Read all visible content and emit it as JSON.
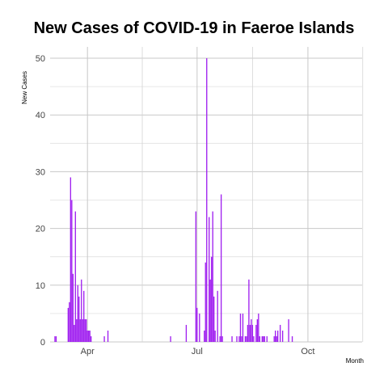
{
  "chart_data": {
    "type": "bar",
    "title": "New Cases of COVID-19 in Faeroe Islands",
    "xlabel": "Month",
    "ylabel": "New Cases",
    "ylim": [
      0,
      52
    ],
    "xlim": [
      "2020-03-01",
      "2020-11-15"
    ],
    "yticks": [
      0,
      10,
      20,
      30,
      40,
      50
    ],
    "xticks": [
      {
        "date": "2020-04-01",
        "label": "Apr"
      },
      {
        "date": "2020-07-01",
        "label": "Jul"
      },
      {
        "date": "2020-10-01",
        "label": "Oct"
      }
    ],
    "color": "#a020f0",
    "points": [
      [
        "2020-03-05",
        1
      ],
      [
        "2020-03-06",
        1
      ],
      [
        "2020-03-16",
        6
      ],
      [
        "2020-03-17",
        7
      ],
      [
        "2020-03-18",
        29
      ],
      [
        "2020-03-19",
        25
      ],
      [
        "2020-03-20",
        12
      ],
      [
        "2020-03-21",
        3
      ],
      [
        "2020-03-22",
        23
      ],
      [
        "2020-03-23",
        4
      ],
      [
        "2020-03-24",
        10
      ],
      [
        "2020-03-25",
        8
      ],
      [
        "2020-03-26",
        4
      ],
      [
        "2020-03-27",
        11
      ],
      [
        "2020-03-28",
        4
      ],
      [
        "2020-03-29",
        9
      ],
      [
        "2020-03-30",
        4
      ],
      [
        "2020-03-31",
        4
      ],
      [
        "2020-04-01",
        2
      ],
      [
        "2020-04-02",
        2
      ],
      [
        "2020-04-03",
        2
      ],
      [
        "2020-04-04",
        1
      ],
      [
        "2020-04-15",
        1
      ],
      [
        "2020-04-18",
        2
      ],
      [
        "2020-06-09",
        1
      ],
      [
        "2020-06-22",
        3
      ],
      [
        "2020-06-30",
        23
      ],
      [
        "2020-07-01",
        6
      ],
      [
        "2020-07-03",
        5
      ],
      [
        "2020-07-07",
        2
      ],
      [
        "2020-07-08",
        14
      ],
      [
        "2020-07-09",
        50
      ],
      [
        "2020-07-11",
        22
      ],
      [
        "2020-07-12",
        11
      ],
      [
        "2020-07-13",
        15
      ],
      [
        "2020-07-14",
        23
      ],
      [
        "2020-07-15",
        8
      ],
      [
        "2020-07-16",
        2
      ],
      [
        "2020-07-18",
        9
      ],
      [
        "2020-07-20",
        1
      ],
      [
        "2020-07-21",
        26
      ],
      [
        "2020-07-22",
        1
      ],
      [
        "2020-07-30",
        1
      ],
      [
        "2020-08-03",
        1
      ],
      [
        "2020-08-05",
        1
      ],
      [
        "2020-08-06",
        5
      ],
      [
        "2020-08-07",
        1
      ],
      [
        "2020-08-08",
        5
      ],
      [
        "2020-08-10",
        1
      ],
      [
        "2020-08-11",
        1
      ],
      [
        "2020-08-12",
        3
      ],
      [
        "2020-08-13",
        11
      ],
      [
        "2020-08-14",
        3
      ],
      [
        "2020-08-15",
        4
      ],
      [
        "2020-08-16",
        3
      ],
      [
        "2020-08-17",
        1
      ],
      [
        "2020-08-19",
        3
      ],
      [
        "2020-08-20",
        4
      ],
      [
        "2020-08-21",
        5
      ],
      [
        "2020-08-22",
        1
      ],
      [
        "2020-08-24",
        1
      ],
      [
        "2020-08-25",
        1
      ],
      [
        "2020-08-26",
        1
      ],
      [
        "2020-08-28",
        1
      ],
      [
        "2020-09-03",
        1
      ],
      [
        "2020-09-04",
        2
      ],
      [
        "2020-09-05",
        1
      ],
      [
        "2020-09-06",
        2
      ],
      [
        "2020-09-08",
        3
      ],
      [
        "2020-09-10",
        2
      ],
      [
        "2020-09-15",
        4
      ],
      [
        "2020-09-18",
        1
      ]
    ]
  }
}
